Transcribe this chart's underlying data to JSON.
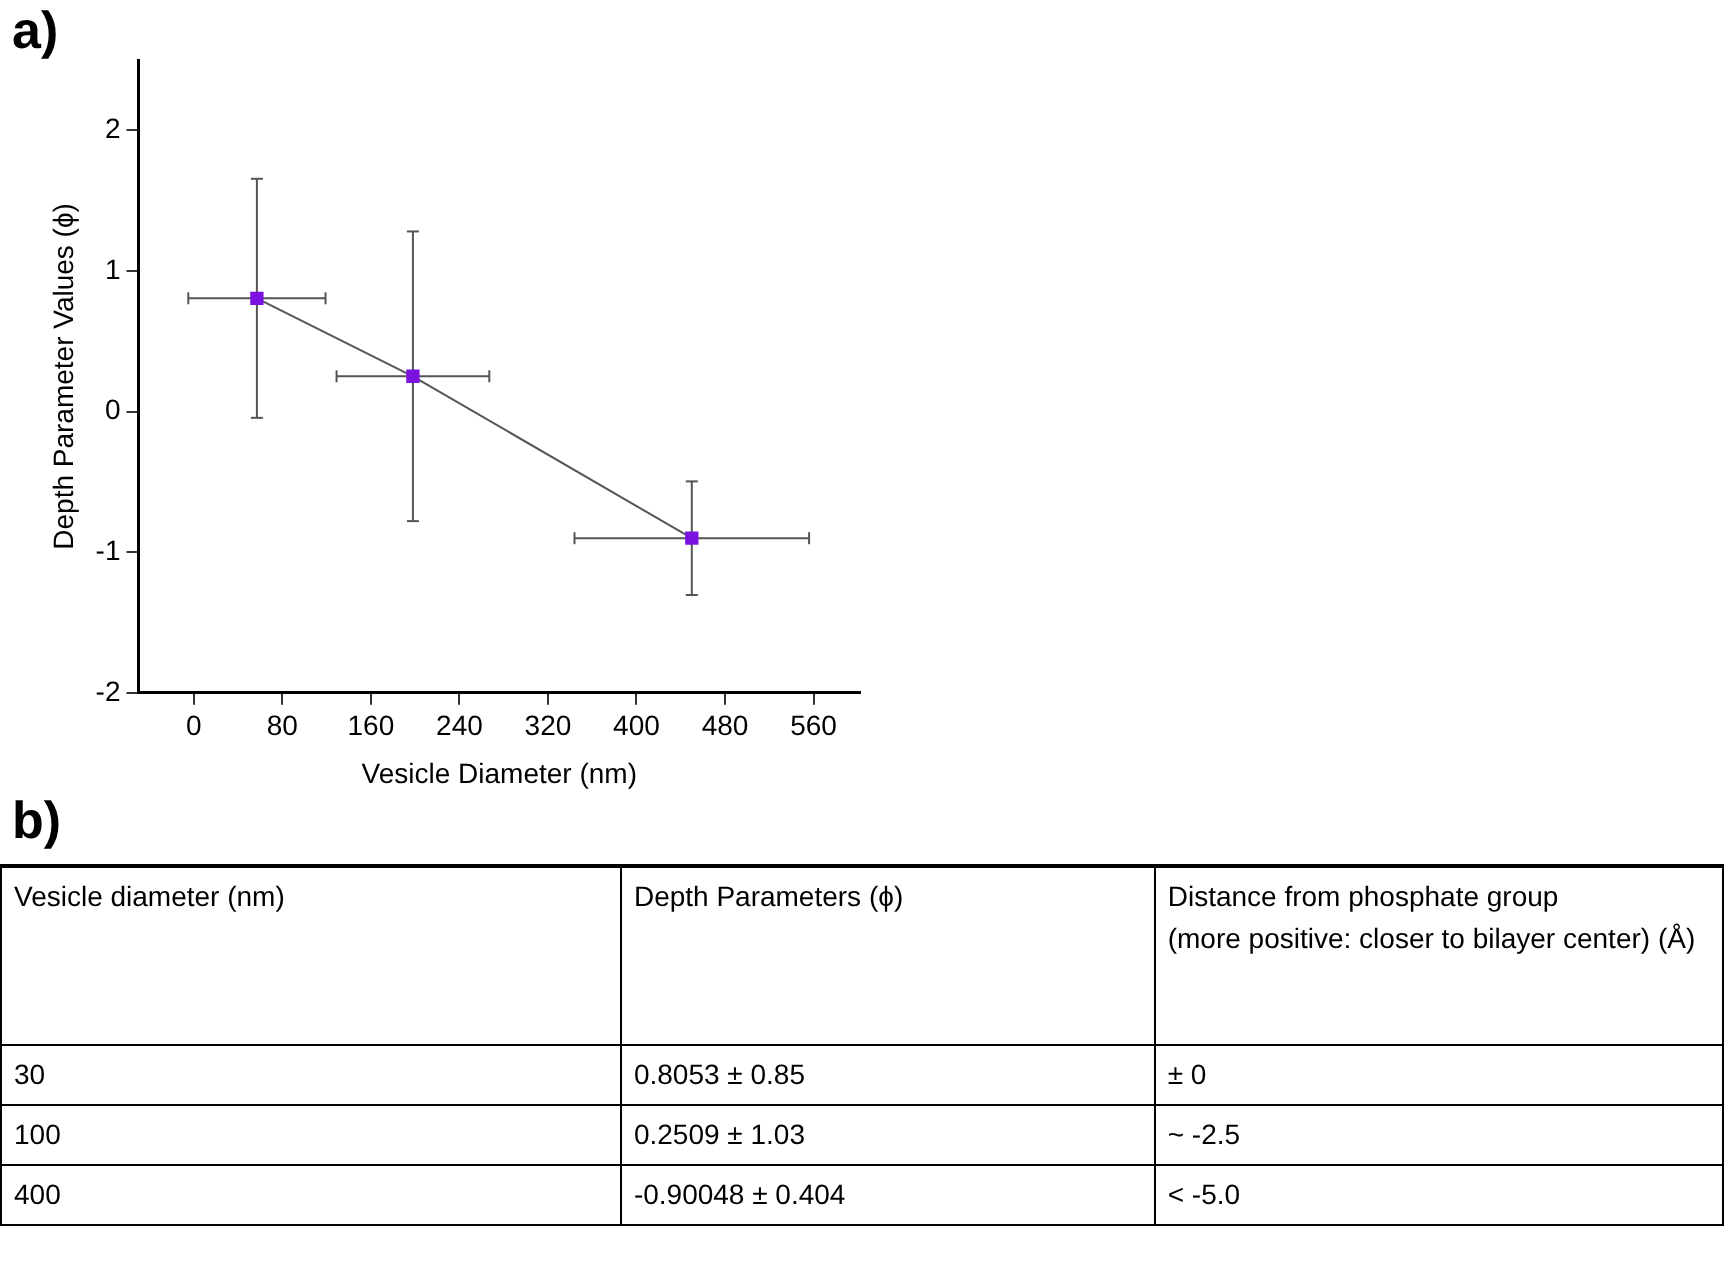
{
  "chart_data": {
    "type": "line",
    "xlabel": "Vesicle Diameter (nm)",
    "ylabel": "Depth Parameter Values (ϕ)",
    "x": [
      57,
      198,
      450
    ],
    "series": [
      {
        "color": "#7b12e0",
        "values": [
          0.8053,
          0.2509,
          -0.90048
        ],
        "errors": [
          0.85,
          1.03,
          0.404
        ],
        "xerrors": [
          62,
          69,
          106
        ]
      }
    ],
    "xlim": [
      -50,
      602
    ],
    "xticks": [
      0,
      80,
      160,
      240,
      320,
      400,
      480,
      560
    ],
    "ylim": [
      -2,
      2.5
    ],
    "yticks": [
      -2,
      -1,
      0,
      1,
      2
    ],
    "grid": false,
    "legend": false,
    "marker": "square",
    "line_style": "solid",
    "annotations": [
      "a)",
      "b)",
      "Vesicle diameter (nm)",
      "Depth Parameters (ϕ)",
      "Distance from phosphate group\n(more positive: closer to bilayer center) (Å)",
      "30",
      "0.8053 ± 0.85",
      "± 0",
      "100",
      "0.2509 ± 1.03",
      "~ -2.5",
      "400",
      "-0.90048 ± 0.404",
      "< -5.0"
    ]
  }
}
